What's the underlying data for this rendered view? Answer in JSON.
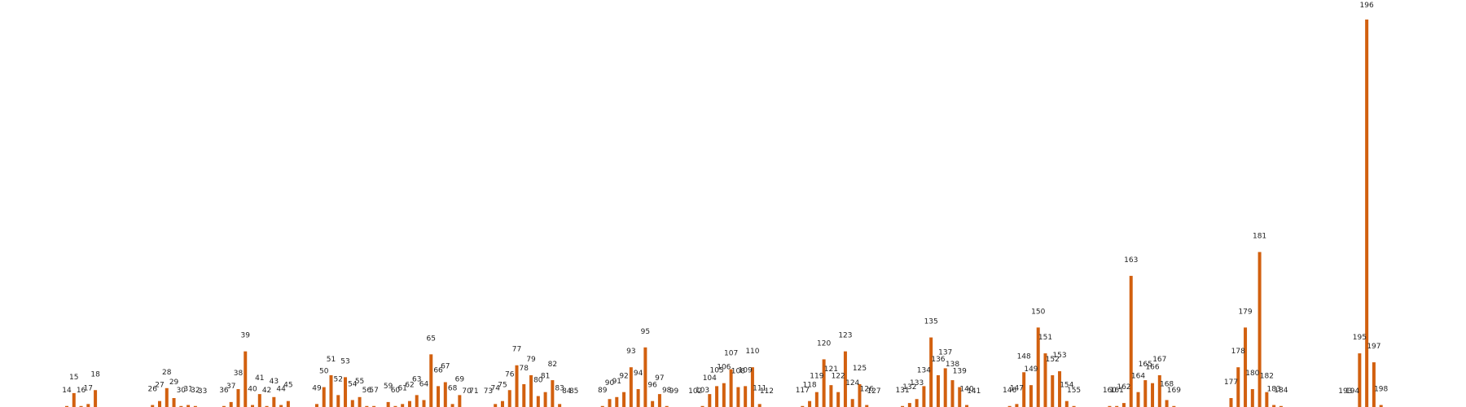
{
  "chart_data": {
    "type": "bar",
    "bar_color": "#D2600F",
    "grid": false,
    "ylim": [
      0,
      200
    ],
    "categories": [
      "14",
      "15",
      "16",
      "17",
      "18",
      "26",
      "27",
      "28",
      "29",
      "30",
      "31",
      "32",
      "33",
      "36",
      "37",
      "38",
      "39",
      "40",
      "41",
      "42",
      "43",
      "44",
      "45",
      "49",
      "50",
      "51",
      "52",
      "53",
      "54",
      "55",
      "56",
      "57",
      "59",
      "60",
      "61",
      "62",
      "63",
      "64",
      "65",
      "66",
      "67",
      "68",
      "69",
      "70",
      "71",
      "73",
      "74",
      "75",
      "76",
      "77",
      "78",
      "79",
      "80",
      "81",
      "82",
      "83",
      "84",
      "85",
      "89",
      "90",
      "91",
      "92",
      "93",
      "94",
      "95",
      "96",
      "97",
      "98",
      "99",
      "102",
      "103",
      "104",
      "105",
      "106",
      "107",
      "108",
      "109",
      "110",
      "111",
      "112",
      "117",
      "118",
      "119",
      "120",
      "121",
      "122",
      "123",
      "124",
      "125",
      "126",
      "127",
      "131",
      "132",
      "133",
      "134",
      "135",
      "136",
      "137",
      "138",
      "139",
      "140",
      "141",
      "146",
      "147",
      "148",
      "149",
      "150",
      "151",
      "152",
      "153",
      "154",
      "155",
      "160",
      "161",
      "162",
      "163",
      "164",
      "165",
      "166",
      "167",
      "168",
      "169",
      "177",
      "178",
      "179",
      "180",
      "181",
      "182",
      "183",
      "184",
      "193",
      "194",
      "195",
      "196",
      "197",
      "198"
    ],
    "values": [
      0.5,
      7,
      0.5,
      1.5,
      8.5,
      1,
      3,
      9.5,
      4.5,
      0.5,
      1,
      0.5,
      0,
      0.5,
      2.5,
      9,
      28,
      1,
      6.5,
      0.5,
      5,
      1,
      3,
      1.5,
      10,
      16,
      6,
      15,
      3.5,
      5,
      0.5,
      0.5,
      2.5,
      0.5,
      1.5,
      3,
      6,
      3.5,
      26.5,
      10.5,
      12.5,
      1.5,
      6,
      0,
      0,
      0,
      1.5,
      3,
      8.5,
      21,
      11.5,
      16,
      5.5,
      7.5,
      13.5,
      1.5,
      0,
      0,
      0.5,
      4,
      5,
      7.5,
      20,
      9,
      30,
      3,
      6.5,
      0.5,
      0,
      0,
      0.5,
      6.5,
      10.5,
      12,
      19,
      10,
      10.5,
      20,
      1.5,
      0,
      0.5,
      3,
      7.5,
      24,
      11,
      7.5,
      28,
      4,
      11.5,
      1,
      0,
      0.5,
      2,
      4,
      10.5,
      35,
      16,
      19.5,
      13.5,
      10,
      1,
      0,
      0.5,
      1.5,
      17.5,
      11,
      40,
      27,
      16,
      18,
      3,
      0.5,
      0.5,
      0.5,
      2,
      66,
      7.5,
      13.5,
      12,
      16,
      3.5,
      0.5,
      4.5,
      20,
      40,
      9,
      78,
      7.5,
      1,
      0.5,
      0,
      0,
      27,
      195,
      22.5,
      1
    ]
  }
}
